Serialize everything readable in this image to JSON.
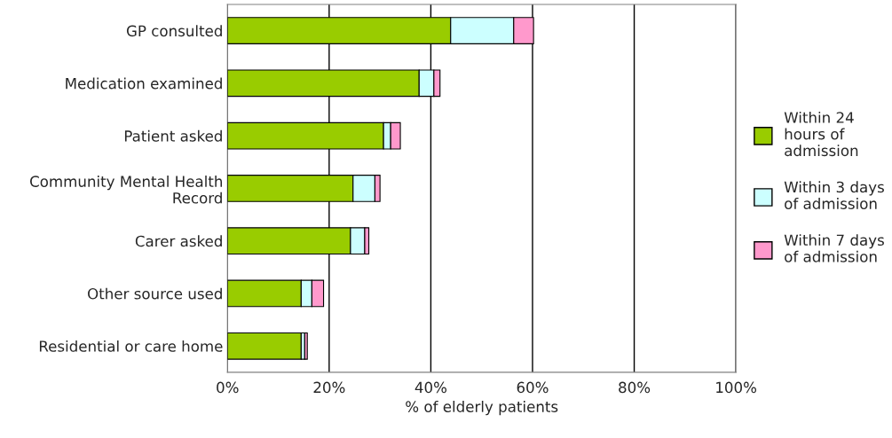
{
  "chart_data": {
    "type": "bar",
    "orientation": "horizontal",
    "stacked": true,
    "xlabel": "% of elderly patients",
    "categories": [
      "GP consulted",
      "Medication examined",
      "Patient asked",
      "Community Mental Health Record",
      "Carer asked",
      "Other source used",
      "Residential or care home"
    ],
    "series": [
      {
        "name": "Within 24 hours of admission",
        "color": "#99cc00",
        "values": [
          43.9,
          37.7,
          30.7,
          24.7,
          24.2,
          14.5,
          14.5
        ]
      },
      {
        "name": "Within 3 days of admission",
        "color": "#ccffff",
        "values": [
          12.4,
          2.9,
          1.4,
          4.3,
          2.8,
          2.1,
          0.7
        ]
      },
      {
        "name": "Within 7 days of admission",
        "color": "#ff99cc",
        "values": [
          3.9,
          1.2,
          1.9,
          1.0,
          0.8,
          2.3,
          0.5
        ]
      }
    ],
    "xlim": [
      0,
      100
    ],
    "xticks": [
      {
        "value": 0,
        "label": "0%"
      },
      {
        "value": 20,
        "label": "20%"
      },
      {
        "value": 40,
        "label": "40%"
      },
      {
        "value": 60,
        "label": "60%"
      },
      {
        "value": 80,
        "label": "80%"
      },
      {
        "value": 100,
        "label": "100%"
      }
    ],
    "grid": "x",
    "legend": "right"
  }
}
